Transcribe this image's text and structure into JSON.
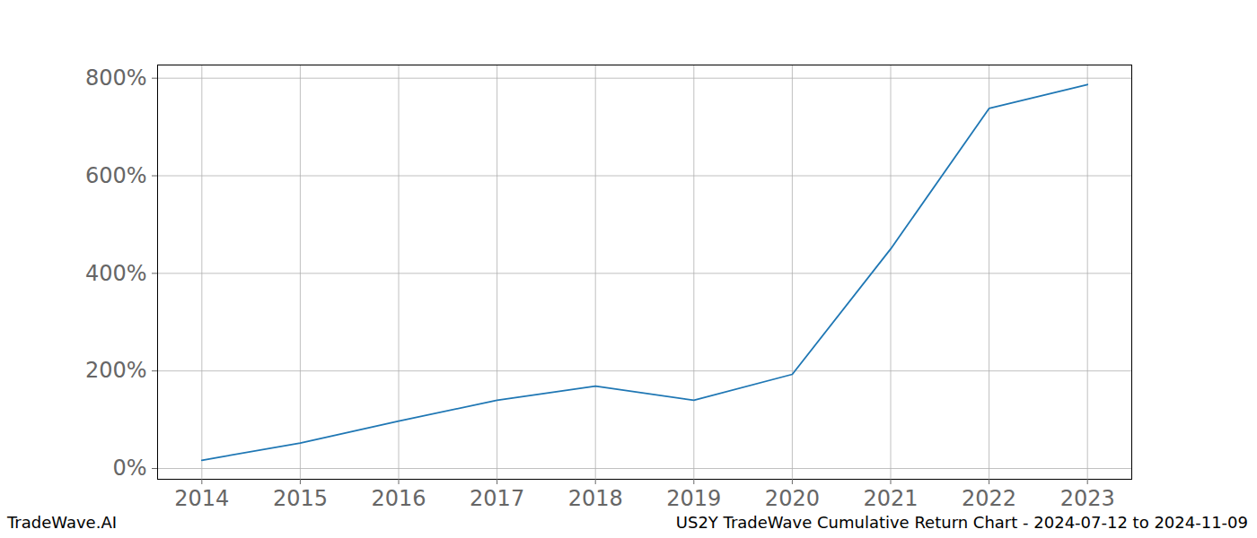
{
  "chart_data": {
    "type": "line",
    "title": "US2Y TradeWave Cumulative Return Chart - 2024-07-12 to 2024-11-09",
    "source": "TradeWave.AI",
    "x": [
      2014,
      2015,
      2016,
      2017,
      2018,
      2019,
      2020,
      2021,
      2022,
      2023
    ],
    "values": [
      17,
      52,
      97,
      140,
      169,
      140,
      193,
      450,
      738,
      787
    ],
    "color": "#1f77b4",
    "xlim": [
      2013.55,
      2023.45
    ],
    "xticks": [
      2014,
      2015,
      2016,
      2017,
      2018,
      2019,
      2020,
      2021,
      2022,
      2023
    ],
    "ylim": [
      -22,
      827
    ],
    "yticks": [
      {
        "value": 0,
        "label": "0%"
      },
      {
        "value": 200,
        "label": "200%"
      },
      {
        "value": 400,
        "label": "400%"
      },
      {
        "value": 600,
        "label": "600%"
      },
      {
        "value": 800,
        "label": "800%"
      }
    ],
    "grid": true
  }
}
